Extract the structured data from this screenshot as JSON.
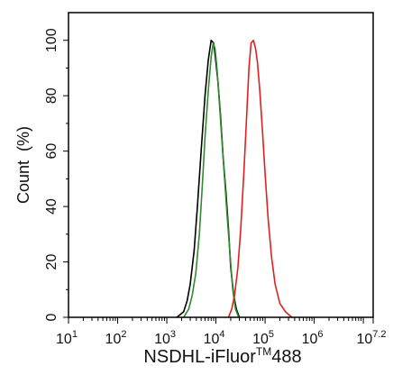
{
  "chart_data": {
    "type": "line",
    "title": "",
    "xlabel": {
      "prefix": "NSDHL-iFluor",
      "superscript": "TM",
      "suffix": "488"
    },
    "ylabel": "Count  (%)",
    "x_scale": "log",
    "xlim": [
      10,
      15848932
    ],
    "ylim": [
      0,
      110
    ],
    "grid": false,
    "legend": "none",
    "x_ticks": [
      {
        "value": 10,
        "base": "10",
        "exp": "1"
      },
      {
        "value": 100,
        "base": "10",
        "exp": "2"
      },
      {
        "value": 1000,
        "base": "10",
        "exp": "3"
      },
      {
        "value": 10000,
        "base": "10",
        "exp": "4"
      },
      {
        "value": 100000,
        "base": "10",
        "exp": "5"
      },
      {
        "value": 1000000,
        "base": "10",
        "exp": "6"
      },
      {
        "value": 15848932,
        "base": "10",
        "exp": "7.2"
      }
    ],
    "y_ticks": [
      {
        "value": 0,
        "label": "0"
      },
      {
        "value": 20,
        "label": "20"
      },
      {
        "value": 40,
        "label": "40"
      },
      {
        "value": 60,
        "label": "60"
      },
      {
        "value": 80,
        "label": "80"
      },
      {
        "value": 100,
        "label": "100"
      }
    ],
    "series": [
      {
        "color": "#000000",
        "x": [
          1600,
          2200,
          2600,
          3000,
          3600,
          4200,
          5000,
          6000,
          7000,
          8000,
          9000,
          10000,
          11000,
          12500,
          14000,
          16000,
          18000,
          20000,
          23000,
          26000,
          30000
        ],
        "y": [
          0,
          2,
          6,
          12,
          24,
          40,
          60,
          80,
          93,
          100,
          99,
          92,
          85,
          72,
          58,
          45,
          32,
          18,
          8,
          3,
          0
        ]
      },
      {
        "color": "#2e8b2e",
        "x": [
          2200,
          2800,
          3300,
          3900,
          4600,
          5300,
          6000,
          7000,
          8000,
          8800,
          9600,
          10500,
          11500,
          13000,
          15000,
          17000,
          19500,
          22000,
          25000,
          29000
        ],
        "y": [
          0,
          3,
          8,
          16,
          30,
          48,
          65,
          82,
          94,
          99,
          97,
          90,
          80,
          66,
          50,
          36,
          22,
          10,
          3,
          0
        ]
      },
      {
        "color": "#e02020",
        "x": [
          18000,
          21000,
          24000,
          28000,
          32000,
          37000,
          42000,
          47000,
          52000,
          58000,
          64000,
          70000,
          78000,
          88000,
          100000,
          115000,
          135000,
          160000,
          200000,
          260000,
          350000
        ],
        "y": [
          0,
          3,
          8,
          18,
          32,
          52,
          72,
          90,
          99,
          100,
          97,
          92,
          82,
          68,
          52,
          36,
          22,
          12,
          5,
          2,
          0
        ]
      }
    ]
  }
}
